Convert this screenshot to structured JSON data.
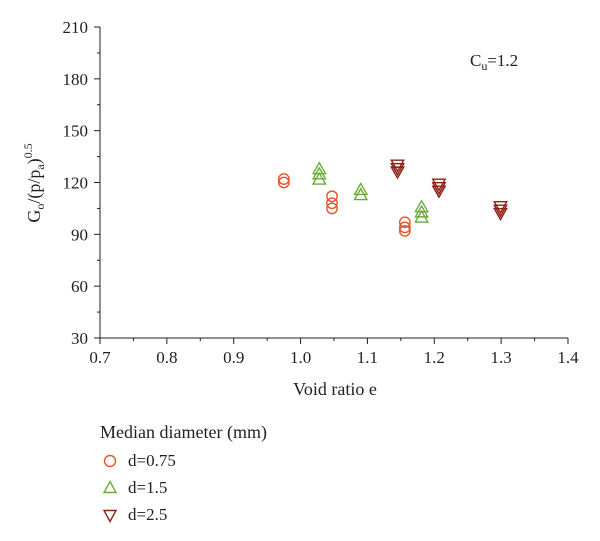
{
  "chart_data": {
    "type": "scatter",
    "title": "",
    "xlabel": "Void ratio e",
    "ylabel": {
      "base": "G",
      "sub1": "o",
      "mid": "/(p/p",
      "sub2": "a",
      "close": ")",
      "sup": "0.5"
    },
    "annotation": {
      "base": "C",
      "sub": "u",
      "rest": "=1.2"
    },
    "xlim": [
      0.7,
      1.4
    ],
    "ylim": [
      30,
      210
    ],
    "xticks": [
      0.7,
      0.8,
      0.9,
      1.0,
      1.1,
      1.2,
      1.3,
      1.4
    ],
    "xtick_labels": [
      "0.7",
      "0.8",
      "0.9",
      "1.0",
      "1.1",
      "1.2",
      "1.3",
      "1.4"
    ],
    "yticks": [
      30,
      60,
      90,
      120,
      150,
      180,
      210
    ],
    "ytick_labels": [
      "30",
      "60",
      "90",
      "120",
      "150",
      "180",
      "210"
    ],
    "grid": false,
    "legend": {
      "title": "Median diameter (mm)",
      "placement": "bottom-left"
    },
    "series": [
      {
        "name": "d=0.75",
        "marker": "circle",
        "color": "#e0572a",
        "points": [
          [
            0.975,
            122
          ],
          [
            0.975,
            120
          ],
          [
            1.047,
            112
          ],
          [
            1.047,
            108
          ],
          [
            1.047,
            105
          ],
          [
            1.156,
            97
          ],
          [
            1.156,
            94
          ],
          [
            1.156,
            92
          ]
        ]
      },
      {
        "name": "d=1.5",
        "marker": "triangle-up",
        "color": "#6aab3e",
        "points": [
          [
            1.028,
            128
          ],
          [
            1.028,
            125
          ],
          [
            1.028,
            122
          ],
          [
            1.09,
            116
          ],
          [
            1.09,
            113
          ],
          [
            1.181,
            106
          ],
          [
            1.181,
            103
          ],
          [
            1.181,
            100
          ]
        ]
      },
      {
        "name": "d=2.5",
        "marker": "triangle-down",
        "color": "#8b2113",
        "points": [
          [
            1.145,
            130
          ],
          [
            1.145,
            128
          ],
          [
            1.145,
            126
          ],
          [
            1.207,
            119
          ],
          [
            1.207,
            117
          ],
          [
            1.207,
            115
          ],
          [
            1.299,
            106
          ],
          [
            1.299,
            104
          ],
          [
            1.299,
            102
          ]
        ]
      }
    ]
  }
}
